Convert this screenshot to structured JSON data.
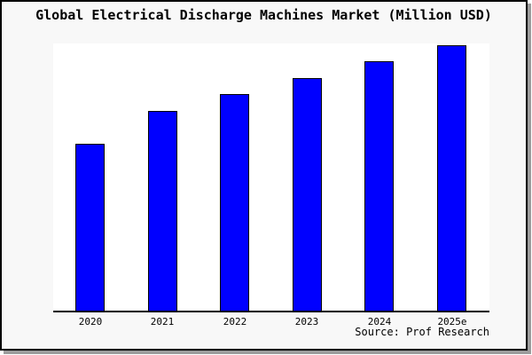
{
  "window": {
    "title": "Global Electrical Discharge Machines Market (Million USD)",
    "source_credit": "Source: Prof Research"
  },
  "chart_data": {
    "type": "bar",
    "title": "Global Electrical Discharge Machines Market (Million USD)",
    "categories": [
      "2020",
      "2021",
      "2022",
      "2023",
      "2024",
      "2025e"
    ],
    "values": [
      100,
      119.7,
      129.8,
      139.4,
      149.5,
      159.0
    ],
    "value_scale_note": "no y-axis or gridlines shown; values estimated from bar heights as relative index with 2020 = 100",
    "xlabel": "",
    "ylabel": "",
    "ylim": [
      0,
      160
    ],
    "grid": false,
    "legend_position": "none",
    "annotation": "Source: Prof Research",
    "bar_color": "#0000ff",
    "bar_border_color": "#000000"
  },
  "colors": {
    "canvas_background": "#f8f8f8",
    "plot_background": "#ffffff",
    "window_border": "#000000",
    "window_shadow": "#9c9c9c",
    "axis_line": "#000000",
    "text": "#000000"
  }
}
